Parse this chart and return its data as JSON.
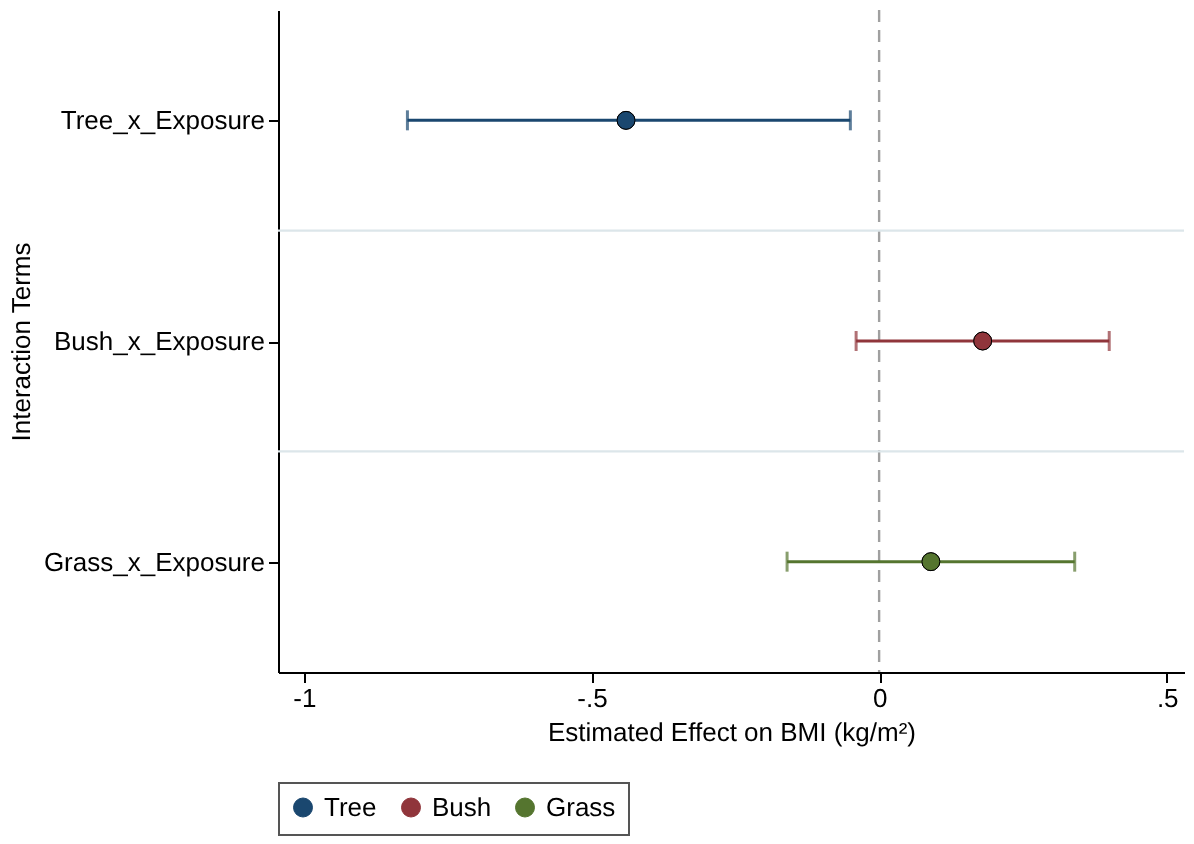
{
  "chart_data": {
    "type": "scatter",
    "orientation": "horizontal",
    "xlabel": "Estimated Effect on BMI (kg/m²)",
    "ylabel": "Interaction Terms",
    "categories": [
      "Tree_x_Exposure",
      "Bush_x_Exposure",
      "Grass_x_Exposure"
    ],
    "series": [
      {
        "name": "Tree",
        "color": "#1a476f",
        "values": [
          -0.44,
          null,
          null
        ],
        "errors": [
          [
            -0.82,
            -0.05
          ],
          null,
          null
        ]
      },
      {
        "name": "Bush",
        "color": "#90353b",
        "values": [
          null,
          0.18,
          null
        ],
        "errors": [
          null,
          [
            -0.04,
            0.4
          ],
          null
        ]
      },
      {
        "name": "Grass",
        "color": "#55752f",
        "values": [
          null,
          null,
          0.09
        ],
        "errors": [
          null,
          null,
          [
            -0.16,
            0.34
          ]
        ]
      }
    ],
    "xlim": [
      -1.045,
      0.53
    ],
    "xticks": [
      {
        "value": -1,
        "label": "-1"
      },
      {
        "value": -0.5,
        "label": "-.5"
      },
      0,
      {
        "value": 0.5,
        "label": ".5"
      }
    ],
    "ref_lines": [
      {
        "axis": "x",
        "value": 0,
        "color": "#a0a0a0",
        "line_style": "dashed"
      }
    ],
    "grid": "y",
    "legend": "bottom",
    "marker": "circle"
  }
}
